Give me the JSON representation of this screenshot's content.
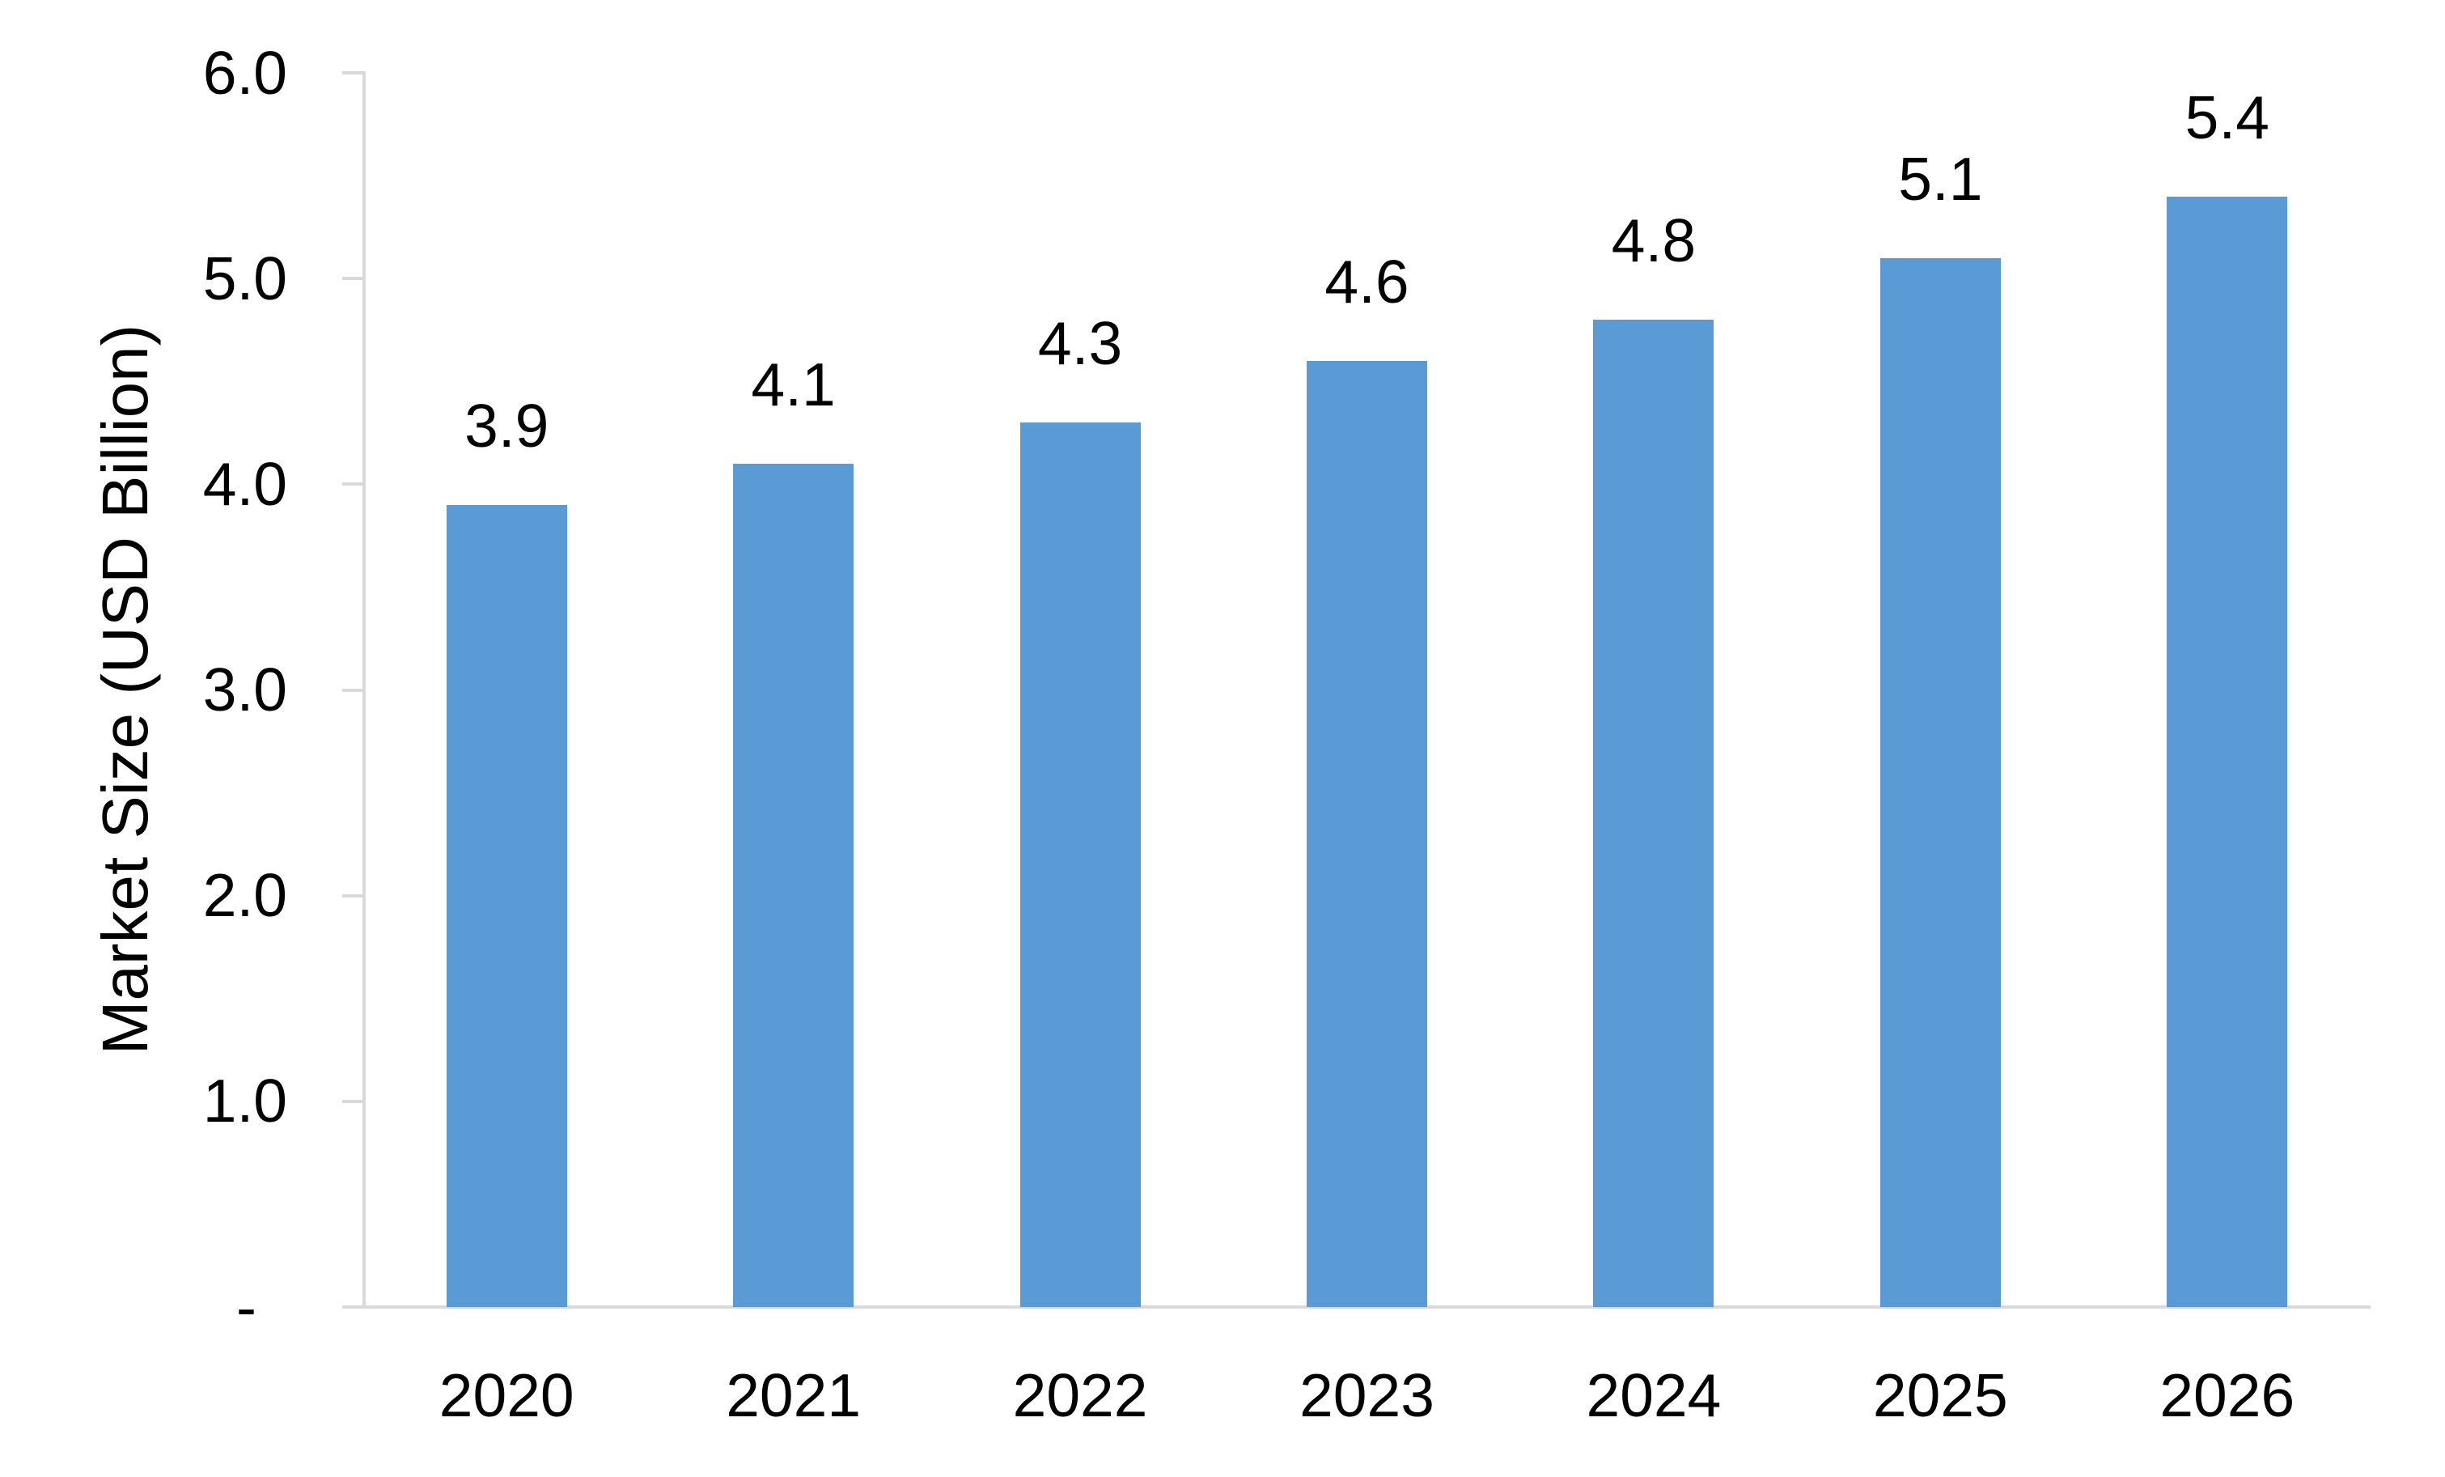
{
  "chart_data": {
    "type": "bar",
    "title": "",
    "categories": [
      "2020",
      "2021",
      "2022",
      "2023",
      "2024",
      "2025",
      "2026"
    ],
    "values": [
      3.9,
      4.1,
      4.3,
      4.6,
      4.8,
      5.1,
      5.4
    ],
    "data_labels": [
      "3.9",
      "4.1",
      "4.3",
      "4.6",
      "4.8",
      "5.1",
      "5.4"
    ],
    "series_count": 1,
    "xlabel": "",
    "ylabel": "Market Size (USD Billion)",
    "ylim": [
      0,
      6
    ],
    "ytick_step": 1.0,
    "ytick_labels_top_to_bottom": [
      "6.0",
      "5.0",
      "4.0",
      "3.0",
      "2.0",
      "1.0",
      "-"
    ],
    "grid": false,
    "legend": false,
    "colors": {
      "bar_fill": "#5B9BD5",
      "axis_line": "#D9D9D9",
      "text": "#000000",
      "background": "#FFFFFF"
    }
  }
}
